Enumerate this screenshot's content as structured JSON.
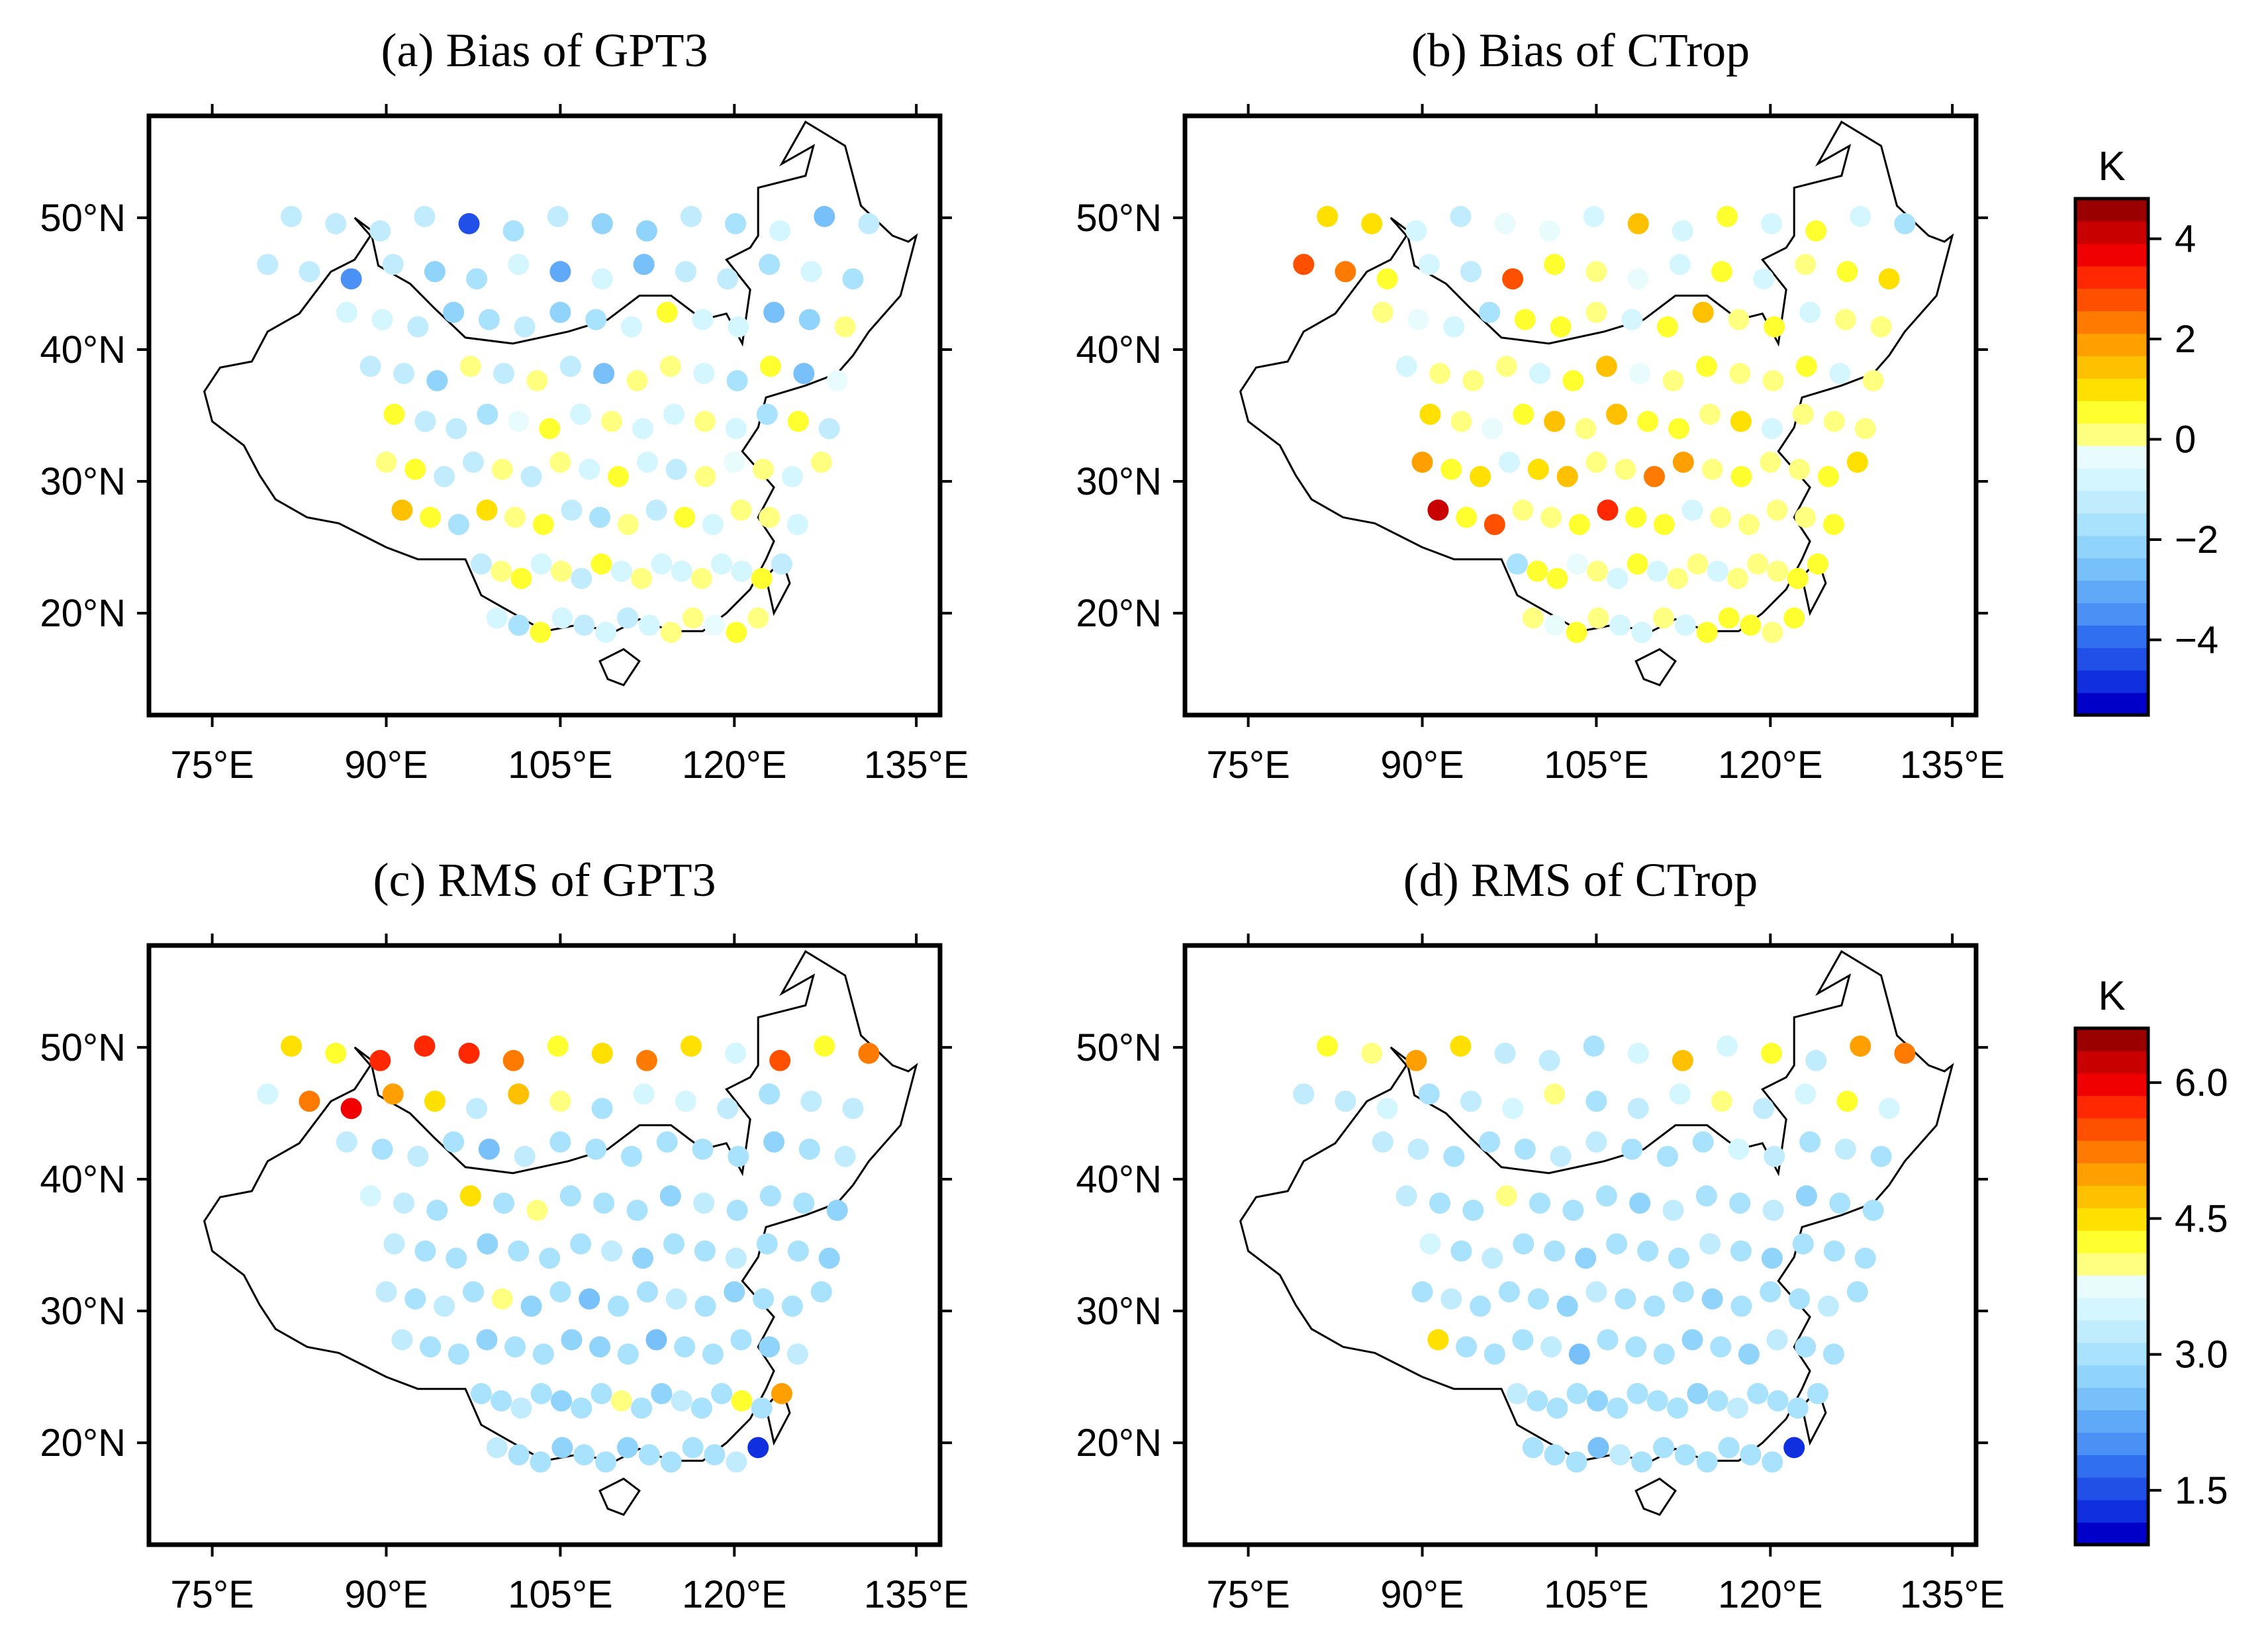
{
  "figure": {
    "panels": [
      {
        "id": "a",
        "title": "(a) Bias of GPT3",
        "colorbar": "bias",
        "stations": [
          [
            -1.4,
            -1.4,
            -1.3,
            -1.2,
            -4.6,
            -1.5,
            -1.2,
            -2.2,
            -2.1,
            -1.3,
            -1.6,
            -1.0,
            -2.7,
            -1.4
          ],
          [
            -1.2,
            -1.1,
            -3.6,
            -1.1,
            -2.1,
            -1.8,
            -1.0,
            -2.9,
            -1.0,
            -2.4,
            -1.3,
            -1.3,
            -1.5,
            -0.9,
            -1.9
          ],
          [
            -0.8,
            -1.0,
            -1.2,
            -2.1,
            -1.7,
            -1.4,
            -2.3,
            -1.6,
            -0.6,
            0.7,
            -0.7,
            -0.8,
            -2.6,
            -2.3,
            0.1
          ],
          [
            -1.3,
            -1.1,
            -2.0,
            0.3,
            -1.2,
            0.1,
            -1.1,
            -2.4,
            0.0,
            0.1,
            -0.7,
            -1.8,
            0.6,
            -2.6,
            -0.5
          ],
          [
            0.7,
            -1.2,
            -1.1,
            -1.9,
            -0.5,
            0.4,
            -1.0,
            0.2,
            -1.0,
            -1.0,
            0.1,
            -0.7,
            -1.6,
            0.5,
            -1.3
          ],
          [
            0.3,
            0.6,
            -1.4,
            -1.1,
            0.0,
            -1.1,
            0.3,
            -0.9,
            0.4,
            -0.8,
            -1.3,
            0.2,
            -0.5,
            0.0,
            -0.6,
            0.2
          ],
          [
            1.3,
            0.5,
            -1.6,
            1.0,
            0.3,
            0.6,
            -1.3,
            -1.7,
            0.2,
            -1.1,
            0.5,
            -0.8,
            0.3,
            0.2,
            -0.9
          ],
          [
            -1.3,
            0.1,
            0.4,
            -0.9,
            0.2,
            -1.1,
            0.4,
            -1.0,
            0.1,
            -0.6,
            -1.0,
            0.3,
            -0.8,
            -0.6,
            0.5,
            -1.4
          ],
          [
            -0.8,
            -1.5,
            0.4,
            -0.7,
            -1.2,
            -0.9,
            -1.1,
            -0.9,
            0.2,
            0.3,
            -0.5,
            0.4,
            0.1
          ]
        ]
      },
      {
        "id": "b",
        "title": "(b) Bias of CTrop",
        "colorbar": "bias",
        "stations": [
          [
            0.8,
            1.1,
            -0.8,
            -1.1,
            -0.2,
            -0.5,
            -0.9,
            1.3,
            -0.7,
            0.7,
            -0.9,
            0.4,
            -0.6,
            -1.6
          ],
          [
            3.0,
            2.3,
            0.5,
            -0.8,
            -1.1,
            2.6,
            0.4,
            0.3,
            -0.4,
            -0.9,
            0.5,
            -0.8,
            0.2,
            0.6,
            0.9
          ],
          [
            0.3,
            -0.3,
            -1.0,
            -1.6,
            0.5,
            0.6,
            -0.1,
            -0.7,
            0.4,
            1.3,
            0.0,
            0.6,
            -0.8,
            0.3,
            0.3
          ],
          [
            -0.9,
            0.0,
            0.2,
            0.3,
            -0.6,
            0.4,
            1.5,
            -0.2,
            0.1,
            0.5,
            0.3,
            0.2,
            0.6,
            -0.7,
            0.3
          ],
          [
            0.8,
            0.0,
            -0.5,
            0.4,
            1.3,
            0.2,
            1.4,
            0.4,
            0.6,
            0.0,
            0.8,
            -0.9,
            0.2,
            0.1,
            0.3
          ],
          [
            1.8,
            0.5,
            1.1,
            -0.7,
            0.8,
            1.6,
            0.3,
            0.2,
            2.5,
            1.7,
            0.3,
            0.6,
            0.2,
            0.0,
            0.4,
            0.8
          ],
          [
            4.2,
            0.4,
            2.7,
            0.1,
            0.2,
            0.6,
            3.3,
            0.5,
            0.4,
            -0.8,
            0.2,
            0.0,
            0.1,
            0.3,
            0.5
          ],
          [
            -1.9,
            0.5,
            0.4,
            -0.5,
            0.3,
            -0.6,
            0.4,
            -0.6,
            0.3,
            0.1,
            -0.7,
            0.3,
            0.2,
            -0.1,
            0.5,
            0.7
          ],
          [
            0.2,
            -0.5,
            0.4,
            0.0,
            -0.8,
            -0.7,
            0.3,
            -0.6,
            0.4,
            0.6,
            0.4,
            0.3,
            0.5
          ]
        ]
      },
      {
        "id": "c",
        "title": "(c) RMS of GPT3",
        "colorbar": "rms",
        "stations": [
          [
            4.5,
            4.3,
            5.7,
            5.8,
            5.8,
            5.3,
            4.2,
            4.6,
            5.2,
            4.5,
            3.4,
            5.5,
            4.3,
            5.3
          ],
          [
            3.4,
            5.2,
            5.9,
            5.0,
            4.5,
            3.3,
            4.8,
            4.1,
            3.1,
            3.6,
            3.5,
            3.2,
            3.1,
            3.3,
            3.2
          ],
          [
            3.3,
            3.0,
            3.2,
            2.9,
            2.6,
            3.2,
            3.0,
            2.9,
            3.1,
            3.0,
            2.9,
            3.1,
            2.8,
            2.9,
            3.2
          ],
          [
            3.4,
            3.2,
            3.1,
            4.4,
            3.0,
            4.0,
            3.1,
            2.9,
            3.0,
            2.8,
            3.2,
            2.9,
            3.1,
            3.0,
            2.8
          ],
          [
            3.3,
            3.0,
            2.9,
            2.7,
            3.1,
            3.0,
            2.9,
            3.2,
            2.8,
            2.9,
            3.0,
            3.2,
            2.9,
            3.1,
            2.7
          ],
          [
            3.2,
            3.0,
            3.3,
            3.1,
            4.0,
            2.8,
            3.1,
            2.6,
            3.0,
            2.9,
            3.2,
            3.1,
            2.8,
            3.0,
            2.9,
            3.1
          ],
          [
            3.2,
            3.0,
            2.9,
            2.8,
            3.1,
            3.0,
            2.7,
            2.8,
            3.0,
            2.5,
            3.1,
            2.9,
            3.0,
            2.8,
            3.2
          ],
          [
            3.1,
            2.9,
            3.2,
            3.0,
            2.8,
            3.1,
            2.9,
            4.1,
            3.0,
            2.8,
            3.2,
            2.9,
            3.0,
            4.3,
            3.1,
            4.9
          ],
          [
            3.2,
            3.0,
            2.9,
            2.7,
            3.1,
            3.0,
            2.8,
            2.9,
            3.1,
            3.0,
            2.9,
            3.2,
            1.2
          ]
        ]
      },
      {
        "id": "d",
        "title": "(d) RMS of CTrop",
        "colorbar": "rms",
        "stations": [
          [
            4.3,
            4.0,
            5.0,
            4.5,
            3.3,
            3.2,
            3.1,
            3.5,
            4.8,
            3.4,
            4.3,
            3.3,
            4.9,
            5.3
          ],
          [
            3.3,
            3.2,
            3.5,
            3.1,
            3.3,
            3.4,
            3.9,
            3.1,
            3.2,
            3.4,
            4.1,
            3.3,
            3.5,
            4.2,
            3.6
          ],
          [
            3.3,
            3.2,
            3.0,
            2.9,
            3.1,
            3.3,
            3.2,
            3.0,
            2.9,
            3.1,
            3.4,
            3.2,
            3.0,
            3.3,
            3.1
          ],
          [
            3.2,
            3.0,
            3.1,
            3.9,
            2.9,
            3.1,
            3.0,
            2.8,
            3.3,
            3.1,
            2.9,
            3.2,
            2.8,
            3.0,
            3.1
          ],
          [
            3.4,
            3.1,
            3.2,
            2.9,
            3.0,
            2.8,
            3.1,
            3.0,
            2.9,
            3.2,
            3.0,
            2.8,
            3.1,
            2.9,
            3.0
          ],
          [
            3.0,
            3.3,
            3.1,
            2.9,
            3.0,
            2.7,
            3.2,
            3.0,
            3.1,
            2.9,
            2.8,
            3.0,
            3.1,
            2.9,
            3.2,
            3.0
          ],
          [
            4.6,
            3.1,
            3.0,
            2.9,
            3.2,
            2.5,
            3.0,
            3.1,
            2.9,
            2.7,
            3.0,
            2.8,
            3.2,
            3.0,
            2.9
          ],
          [
            3.3,
            3.0,
            2.9,
            3.1,
            2.8,
            3.0,
            2.9,
            3.0,
            3.1,
            2.8,
            2.9,
            3.2,
            3.0,
            3.1,
            2.9,
            3.0
          ],
          [
            3.1,
            2.9,
            3.0,
            2.4,
            3.2,
            3.0,
            2.9,
            3.1,
            3.0,
            2.9,
            3.1,
            3.0,
            1.2
          ]
        ]
      }
    ],
    "axes": {
      "lon_ticks": [
        "75°E",
        "90°E",
        "105°E",
        "120°E",
        "135°E"
      ],
      "lat_ticks": [
        "20°N",
        "30°N",
        "40°N",
        "50°N"
      ]
    },
    "colorbars": {
      "bias": {
        "unit": "K",
        "min": -5.5,
        "max": 4.8,
        "tick_labels": [
          "4",
          "2",
          "0",
          "−2",
          "−4"
        ]
      },
      "rms": {
        "unit": "K",
        "min": 0.9,
        "max": 6.6,
        "tick_labels": [
          "6.0",
          "4.5",
          "3.0",
          "1.5"
        ]
      }
    },
    "colors": {
      "scale": [
        "#0000c8",
        "#1030e0",
        "#2050e8",
        "#3070f0",
        "#4a90f5",
        "#60a8f8",
        "#78c0fa",
        "#90d4fb",
        "#a8e2fc",
        "#c0ecfd",
        "#d4f6fe",
        "#e8fcfe",
        "#ffff80",
        "#ffff30",
        "#ffe000",
        "#ffc000",
        "#ffa000",
        "#ff7a00",
        "#ff5000",
        "#ff2800",
        "#f00000",
        "#c80000",
        "#9a0000"
      ],
      "land": "#ffffff",
      "frame": "#000000"
    }
  }
}
